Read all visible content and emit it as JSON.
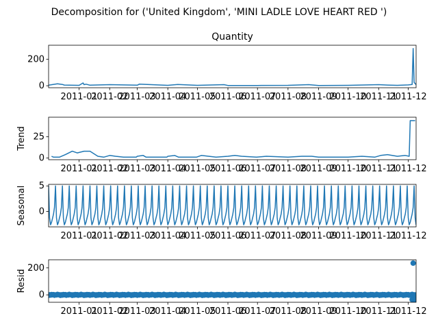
{
  "figure": {
    "suptitle": "Decomposition for ('United Kingdom', 'MINI LADLE LOVE HEART RED ')"
  },
  "colors": {
    "series": "#1f77b4",
    "axis": "#000000",
    "background": "#ffffff"
  },
  "chart_data": [
    {
      "type": "line",
      "title": "Quantity",
      "ylabel": "",
      "x_range": [
        "2010-12-01",
        "2011-12-09"
      ],
      "ylim": [
        -15,
        305
      ],
      "yticks": [
        0,
        200
      ],
      "xticks": [
        "2011-01",
        "2011-02",
        "2011-03",
        "2011-04",
        "2011-05",
        "2011-06",
        "2011-07",
        "2011-08",
        "2011-09",
        "2011-10",
        "2011-11",
        "2011-12"
      ],
      "x": [
        "2010-12-01",
        "2010-12-10",
        "2010-12-15",
        "2010-12-17",
        "2011-01-01",
        "2011-01-05",
        "2011-01-06",
        "2011-01-08",
        "2011-01-12",
        "2011-02-01",
        "2011-03-01",
        "2011-03-03",
        "2011-04-01",
        "2011-04-11",
        "2011-05-01",
        "2011-05-28",
        "2011-06-01",
        "2011-07-01",
        "2011-08-01",
        "2011-08-22",
        "2011-09-01",
        "2011-10-01",
        "2011-11-01",
        "2011-11-10",
        "2011-11-20",
        "2011-12-01",
        "2011-12-05",
        "2011-12-06",
        "2011-12-07",
        "2011-12-09"
      ],
      "values": [
        4,
        15,
        10,
        5,
        3,
        21,
        8,
        12,
        4,
        8,
        4,
        12,
        3,
        9,
        3,
        8,
        2,
        2,
        3,
        8,
        2,
        3,
        8,
        5,
        3,
        6,
        10,
        280,
        25,
        8
      ]
    },
    {
      "type": "line",
      "title": "",
      "ylabel": "Trend",
      "x_range": [
        "2010-12-01",
        "2011-12-09"
      ],
      "ylim": [
        -2,
        48
      ],
      "yticks": [
        0,
        25
      ],
      "xticks": [
        "2011-01",
        "2011-02",
        "2011-03",
        "2011-04",
        "2011-05",
        "2011-06",
        "2011-07",
        "2011-08",
        "2011-09",
        "2011-10",
        "2011-11",
        "2011-12"
      ],
      "x": [
        "2010-12-04",
        "2010-12-06",
        "2010-12-12",
        "2010-12-18",
        "2010-12-25",
        "2010-12-30",
        "2011-01-06",
        "2011-01-12",
        "2011-01-20",
        "2011-01-26",
        "2011-02-01",
        "2011-02-07",
        "2011-02-15",
        "2011-02-28",
        "2011-03-01",
        "2011-03-07",
        "2011-03-10",
        "2011-03-31",
        "2011-04-01",
        "2011-04-08",
        "2011-04-12",
        "2011-04-30",
        "2011-05-05",
        "2011-05-20",
        "2011-06-01",
        "2011-06-08",
        "2011-06-15",
        "2011-06-30",
        "2011-07-10",
        "2011-08-01",
        "2011-08-15",
        "2011-08-25",
        "2011-09-01",
        "2011-09-15",
        "2011-10-01",
        "2011-10-15",
        "2011-10-28",
        "2011-11-03",
        "2011-11-10",
        "2011-11-20",
        "2011-11-28",
        "2011-12-02",
        "2011-12-03",
        "2011-12-06",
        "2011-12-08"
      ],
      "values": [
        2,
        1,
        1,
        4,
        8,
        6,
        8,
        8,
        2,
        1,
        3,
        2,
        1,
        1,
        2,
        3,
        1,
        1,
        2,
        3,
        1,
        1,
        3,
        1,
        2,
        3,
        2,
        1,
        2,
        1,
        2,
        2,
        1,
        1,
        1,
        2,
        1,
        3,
        4,
        2,
        3,
        2,
        44,
        44,
        44
      ]
    },
    {
      "type": "line",
      "title": "",
      "ylabel": "Seasonal",
      "x_range": [
        "2010-12-01",
        "2011-12-09"
      ],
      "ylim": [
        -3,
        5.3
      ],
      "yticks": [
        0,
        5
      ],
      "xticks": [
        "2011-01",
        "2011-02",
        "2011-03",
        "2011-04",
        "2011-05",
        "2011-06",
        "2011-07",
        "2011-08",
        "2011-09",
        "2011-10",
        "2011-11",
        "2011-12"
      ],
      "period_days": 7,
      "cycle_values": [
        5,
        -1.2,
        -2.6,
        -2.1,
        -1.3,
        -0.5,
        0.8
      ]
    },
    {
      "type": "scatter",
      "title": "",
      "ylabel": "Resid",
      "x_range": [
        "2010-12-01",
        "2011-12-09"
      ],
      "ylim": [
        -55,
        260
      ],
      "yticks": [
        0,
        200
      ],
      "xticks": [
        "2011-01",
        "2011-02",
        "2011-03",
        "2011-04",
        "2011-05",
        "2011-06",
        "2011-07",
        "2011-08",
        "2011-09",
        "2011-10",
        "2011-11",
        "2011-12"
      ],
      "baseline": 0,
      "base_pattern": [
        -6,
        3,
        -4,
        5,
        -2,
        4,
        -5,
        2,
        -3,
        6,
        -1,
        3
      ],
      "outliers": [
        {
          "x": "2011-12-06",
          "y": 235
        },
        {
          "x": "2011-12-05",
          "y": -35
        },
        {
          "x": "2011-12-07",
          "y": -38
        },
        {
          "x": "2011-12-08",
          "y": -40
        }
      ]
    }
  ]
}
